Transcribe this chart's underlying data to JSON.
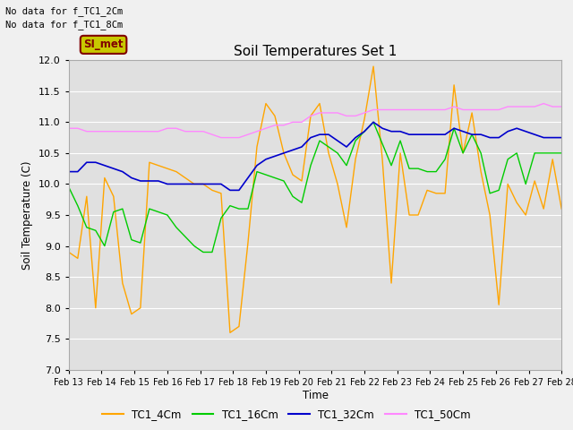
{
  "title": "Soil Temperatures Set 1",
  "xlabel": "Time",
  "ylabel": "Soil Temperature (C)",
  "ylim": [
    7.0,
    12.0
  ],
  "yticks": [
    7.0,
    7.5,
    8.0,
    8.5,
    9.0,
    9.5,
    10.0,
    10.5,
    11.0,
    11.5,
    12.0
  ],
  "xtick_labels": [
    "Feb 13",
    "Feb 14",
    "Feb 15",
    "Feb 16",
    "Feb 17",
    "Feb 18",
    "Feb 19",
    "Feb 20",
    "Feb 21",
    "Feb 22",
    "Feb 23",
    "Feb 24",
    "Feb 25",
    "Feb 26",
    "Feb 27",
    "Feb 28"
  ],
  "no_data_text1": "No data for f_TC1_2Cm",
  "no_data_text2": "No data for f_TC1_8Cm",
  "annotation_text": "SI_met",
  "annotation_bg": "#c8c800",
  "annotation_fg": "#800000",
  "colors": {
    "TC1_4Cm": "#FFA500",
    "TC1_16Cm": "#00CC00",
    "TC1_32Cm": "#0000CC",
    "TC1_50Cm": "#FF88FF"
  },
  "background_color": "#e0e0e0",
  "plot_bg": "#e0e0e0",
  "grid_color": "#ffffff",
  "legend_labels": [
    "TC1_4Cm",
    "TC1_16Cm",
    "TC1_32Cm",
    "TC1_50Cm"
  ],
  "TC1_4Cm": [
    8.9,
    8.8,
    9.8,
    8.0,
    10.1,
    9.8,
    8.4,
    7.9,
    8.0,
    10.35,
    10.3,
    10.25,
    10.2,
    10.1,
    10.0,
    10.0,
    9.9,
    9.85,
    7.6,
    7.7,
    9.05,
    10.6,
    11.3,
    11.1,
    10.5,
    10.15,
    10.05,
    11.1,
    11.3,
    10.5,
    10.0,
    9.3,
    10.4,
    11.05,
    11.9,
    10.4,
    8.4,
    10.5,
    9.5,
    9.5,
    9.9,
    9.85,
    9.85,
    11.6,
    10.5,
    11.15,
    10.2,
    9.5,
    8.05,
    10.0,
    9.7,
    9.5,
    10.05,
    9.6,
    10.4,
    9.6
  ],
  "TC1_16Cm": [
    9.95,
    9.65,
    9.3,
    9.25,
    9.0,
    9.55,
    9.6,
    9.1,
    9.05,
    9.6,
    9.55,
    9.5,
    9.3,
    9.15,
    9.0,
    8.9,
    8.9,
    9.45,
    9.65,
    9.6,
    9.6,
    10.2,
    10.15,
    10.1,
    10.05,
    9.8,
    9.7,
    10.3,
    10.7,
    10.6,
    10.5,
    10.3,
    10.7,
    10.85,
    11.0,
    10.65,
    10.3,
    10.7,
    10.25,
    10.25,
    10.2,
    10.2,
    10.4,
    10.9,
    10.5,
    10.8,
    10.5,
    9.85,
    9.9,
    10.4,
    10.5,
    10.0,
    10.5,
    10.5,
    10.5,
    10.5
  ],
  "TC1_32Cm": [
    10.2,
    10.2,
    10.35,
    10.35,
    10.3,
    10.25,
    10.2,
    10.1,
    10.05,
    10.05,
    10.05,
    10.0,
    10.0,
    10.0,
    10.0,
    10.0,
    10.0,
    10.0,
    9.9,
    9.9,
    10.1,
    10.3,
    10.4,
    10.45,
    10.5,
    10.55,
    10.6,
    10.75,
    10.8,
    10.8,
    10.7,
    10.6,
    10.75,
    10.85,
    11.0,
    10.9,
    10.85,
    10.85,
    10.8,
    10.8,
    10.8,
    10.8,
    10.8,
    10.9,
    10.85,
    10.8,
    10.8,
    10.75,
    10.75,
    10.85,
    10.9,
    10.85,
    10.8,
    10.75,
    10.75,
    10.75
  ],
  "TC1_50Cm": [
    10.9,
    10.9,
    10.85,
    10.85,
    10.85,
    10.85,
    10.85,
    10.85,
    10.85,
    10.85,
    10.85,
    10.9,
    10.9,
    10.85,
    10.85,
    10.85,
    10.8,
    10.75,
    10.75,
    10.75,
    10.8,
    10.85,
    10.9,
    10.95,
    10.95,
    11.0,
    11.0,
    11.1,
    11.15,
    11.15,
    11.15,
    11.1,
    11.1,
    11.15,
    11.2,
    11.2,
    11.2,
    11.2,
    11.2,
    11.2,
    11.2,
    11.2,
    11.2,
    11.25,
    11.2,
    11.2,
    11.2,
    11.2,
    11.2,
    11.25,
    11.25,
    11.25,
    11.25,
    11.3,
    11.25,
    11.25
  ]
}
